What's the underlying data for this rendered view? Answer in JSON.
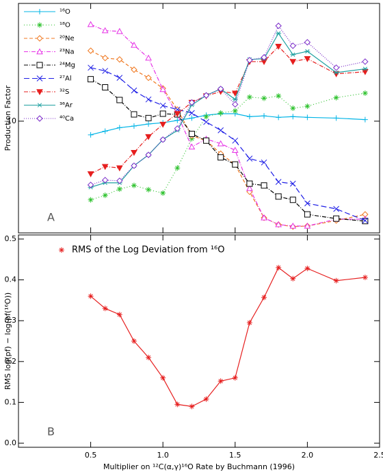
{
  "chart_data": [
    {
      "type": "line",
      "panel_label": "A",
      "ylabel": "Production Factor",
      "yscale": "log",
      "xlim": [
        0,
        2.5
      ],
      "xticks": [
        0.5,
        1,
        1.5,
        2,
        2.5
      ],
      "ylim": [
        2.4,
        45
      ],
      "yticks": [
        10
      ],
      "x": [
        0.5,
        0.6,
        0.7,
        0.8,
        0.9,
        1.0,
        1.1,
        1.2,
        1.3,
        1.4,
        1.5,
        1.6,
        1.7,
        1.8,
        1.9,
        2.0,
        2.2,
        2.4
      ],
      "series": [
        {
          "name": "¹⁶O",
          "color": "#00b4e6",
          "marker": "plus",
          "dash": "",
          "values": [
            8.4,
            8.8,
            9.2,
            9.4,
            9.65,
            9.8,
            10.1,
            10.4,
            10.8,
            11,
            11,
            10.6,
            10.7,
            10.5,
            10.6,
            10.5,
            10.4,
            10.2
          ]
        },
        {
          "name": "¹⁸O",
          "color": "#2ec22e",
          "marker": "asterisk",
          "dash": "1,3",
          "values": [
            3.66,
            3.88,
            4.2,
            4.4,
            4.17,
            3.99,
            5.5,
            8.0,
            10.6,
            11.1,
            11.4,
            13.6,
            13.4,
            13.8,
            11.8,
            12.1,
            13.5,
            14.3
          ]
        },
        {
          "name": "²⁰Ne",
          "color": "#f07820",
          "marker": "diamond",
          "dash": "5,3",
          "values": [
            24.6,
            22.4,
            22,
            19.3,
            17.4,
            15.2,
            11.6,
            8.3,
            7.8,
            6.6,
            5.75,
            4.06,
            2.91,
            2.67,
            2.6,
            2.62,
            2.81,
            3.04
          ]
        },
        {
          "name": "²³Na",
          "color": "#e632e6",
          "marker": "triangle",
          "dash": "6,2,1,2",
          "values": [
            34.4,
            31.8,
            31.5,
            26.4,
            22.4,
            15,
            10.9,
            7.2,
            7.96,
            7.5,
            6.9,
            4.24,
            2.91,
            2.67,
            2.62,
            2.62,
            2.86,
            2.86
          ]
        },
        {
          "name": "²⁴Mg",
          "color": "#000000",
          "marker": "square",
          "dash": "6,2,1,2",
          "values": [
            17.1,
            15.4,
            13.1,
            10.9,
            10.4,
            11,
            10.9,
            8.5,
            7.8,
            6.3,
            5.75,
            4.5,
            4.4,
            3.82,
            3.66,
            3.04,
            2.88,
            2.79
          ]
        },
        {
          "name": "²⁷Al",
          "color": "#1e1ee6",
          "marker": "x",
          "dash": "8,4",
          "values": [
            19.8,
            19,
            17.4,
            14.8,
            13.2,
            12.2,
            11.6,
            11.1,
            9.9,
            8.9,
            7.8,
            6.2,
            5.9,
            4.6,
            4.5,
            3.5,
            3.26,
            2.81
          ]
        },
        {
          "name": "³²S",
          "color": "#e61e1e",
          "marker": "tridown",
          "dash": "6,2,1,2",
          "values": [
            5.1,
            5.6,
            5.5,
            6.7,
            8.2,
            9.6,
            11,
            12.7,
            13.8,
            14.6,
            14.3,
            21.4,
            21.4,
            26,
            21.4,
            22.2,
            18.3,
            18.8
          ]
        },
        {
          "name": "³⁶Ar",
          "color": "#1ea0a0",
          "marker": "star",
          "dash": "",
          "values": [
            4.3,
            4.55,
            4.55,
            5.66,
            6.5,
            7.9,
            8.9,
            12.3,
            13.9,
            15.1,
            13.2,
            22,
            22.2,
            30.7,
            23.4,
            24.4,
            18.6,
            19.5
          ]
        },
        {
          "name": "⁴⁰Ca",
          "color": "#7828c8",
          "marker": "diamond",
          "dash": "1,2",
          "values": [
            4.43,
            4.71,
            4.67,
            5.66,
            6.5,
            7.9,
            9.1,
            12.7,
            13.9,
            15.1,
            12.4,
            21.8,
            22.6,
            33.8,
            26.2,
            27.4,
            19.8,
            21.4
          ]
        }
      ]
    },
    {
      "type": "line",
      "panel_label": "B",
      "ylabel": "RMS log(pf) − log(pf(¹⁶O))",
      "xlabel": "Multiplier on ¹²C(α,γ)¹⁶O Rate by Buchmann (1996)",
      "xlim": [
        0,
        2.5
      ],
      "xticks": [
        0.5,
        {
          "value": 1,
          "label": "1.0"
        },
        1.5,
        {
          "value": 2,
          "label": "2.0"
        },
        2.5
      ],
      "ylim": [
        -0.01,
        0.51
      ],
      "yticks": [
        {
          "value": 0,
          "label": "0.0"
        },
        0.1,
        0.2,
        0.3,
        0.4,
        0.5
      ],
      "x": [
        0.5,
        0.6,
        0.7,
        0.8,
        0.9,
        1.0,
        1.1,
        1.2,
        1.3,
        1.4,
        1.5,
        1.6,
        1.7,
        1.8,
        1.9,
        2.0,
        2.2,
        2.4
      ],
      "series": [
        {
          "name": "RMS of the Log Deviation from ¹⁶O",
          "color": "#e61e1e",
          "marker": "asterisk",
          "dash": "",
          "values": [
            0.36,
            0.33,
            0.315,
            0.25,
            0.21,
            0.16,
            0.095,
            0.09,
            0.108,
            0.152,
            0.16,
            0.295,
            0.357,
            0.43,
            0.403,
            0.428,
            0.398,
            0.406
          ]
        }
      ]
    }
  ]
}
